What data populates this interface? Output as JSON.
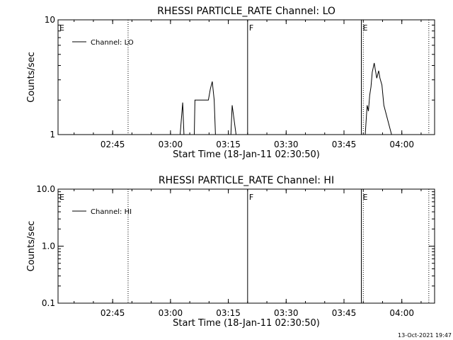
{
  "footer": {
    "timestamp": "13-Oct-2021 19:47"
  },
  "chart_data": [
    {
      "type": "line",
      "title": "RHESSI PARTICLE_RATE Channel: LO",
      "xlabel": "Start Time (18-Jan-11 02:30:50)",
      "ylabel": "Counts/sec",
      "yscale": "log",
      "xlim": [
        "02:30:50",
        "04:08:30"
      ],
      "ylim": [
        1,
        10
      ],
      "x_ticks": [
        "02:45",
        "03:00",
        "03:15",
        "03:30",
        "03:45",
        "04:00"
      ],
      "y_ticks": [
        "1",
        "10"
      ],
      "legend": {
        "entries": [
          "Channel: LO"
        ],
        "position": "top-left"
      },
      "flags": [
        {
          "label": "E",
          "time": "02:30:50",
          "style": "none"
        },
        {
          "label": "",
          "time": "02:49:00",
          "style": "dotted"
        },
        {
          "label": "F",
          "time": "03:20:00",
          "style": "solid"
        },
        {
          "label": "E",
          "time": "03:49:30",
          "style": "solid"
        },
        {
          "label": "",
          "time": "03:50:00",
          "style": "dotted"
        },
        {
          "label": "",
          "time": "04:07:00",
          "style": "dotted"
        }
      ],
      "series": [
        {
          "x": [
            "03:02:30",
            "03:03:10",
            "03:03:30",
            "03:03:50",
            "03:04:20",
            "03:05:40",
            "03:06:10",
            "03:06:20",
            "03:09:50",
            "03:10:20",
            "03:10:50",
            "03:11:20",
            "03:11:40",
            "03:14:30",
            "03:15:10",
            "03:15:40",
            "03:16:00",
            "03:17:00",
            "03:17:30",
            "03:17:50",
            "03:18:10",
            "03:50:30",
            "03:51:00",
            "03:51:20",
            "03:51:40",
            "03:52:00",
            "03:52:20",
            "03:52:50",
            "03:53:10",
            "03:53:30",
            "03:54:00",
            "03:54:20",
            "03:54:50",
            "03:55:20",
            "03:57:20"
          ],
          "y": [
            1,
            1.9,
            1,
            1,
            1,
            1,
            1,
            2,
            2,
            2.5,
            2.9,
            2,
            1,
            1,
            1,
            1,
            1.8,
            1,
            1,
            1,
            1,
            1,
            1.8,
            1.6,
            2.2,
            2.6,
            3.5,
            4.2,
            3.6,
            3.1,
            3.6,
            3.1,
            2.7,
            1.8,
            1
          ]
        }
      ]
    },
    {
      "type": "line",
      "title": "RHESSI PARTICLE_RATE Channel: HI",
      "xlabel": "Start Time (18-Jan-11 02:30:50)",
      "ylabel": "Counts/sec",
      "yscale": "log",
      "xlim": [
        "02:30:50",
        "04:08:30"
      ],
      "ylim": [
        0.1,
        10
      ],
      "x_ticks": [
        "02:45",
        "03:00",
        "03:15",
        "03:30",
        "03:45",
        "04:00"
      ],
      "y_ticks": [
        "0.1",
        "1.0",
        "10.0"
      ],
      "legend": {
        "entries": [
          "Channel: HI"
        ],
        "position": "top-left"
      },
      "flags": [
        {
          "label": "E",
          "time": "02:30:50",
          "style": "none"
        },
        {
          "label": "",
          "time": "02:49:00",
          "style": "dotted"
        },
        {
          "label": "F",
          "time": "03:20:00",
          "style": "solid"
        },
        {
          "label": "E",
          "time": "03:49:30",
          "style": "solid"
        },
        {
          "label": "",
          "time": "03:50:00",
          "style": "dotted"
        },
        {
          "label": "",
          "time": "04:07:00",
          "style": "dotted"
        }
      ],
      "series": [
        {
          "x": [],
          "y": []
        }
      ]
    }
  ]
}
